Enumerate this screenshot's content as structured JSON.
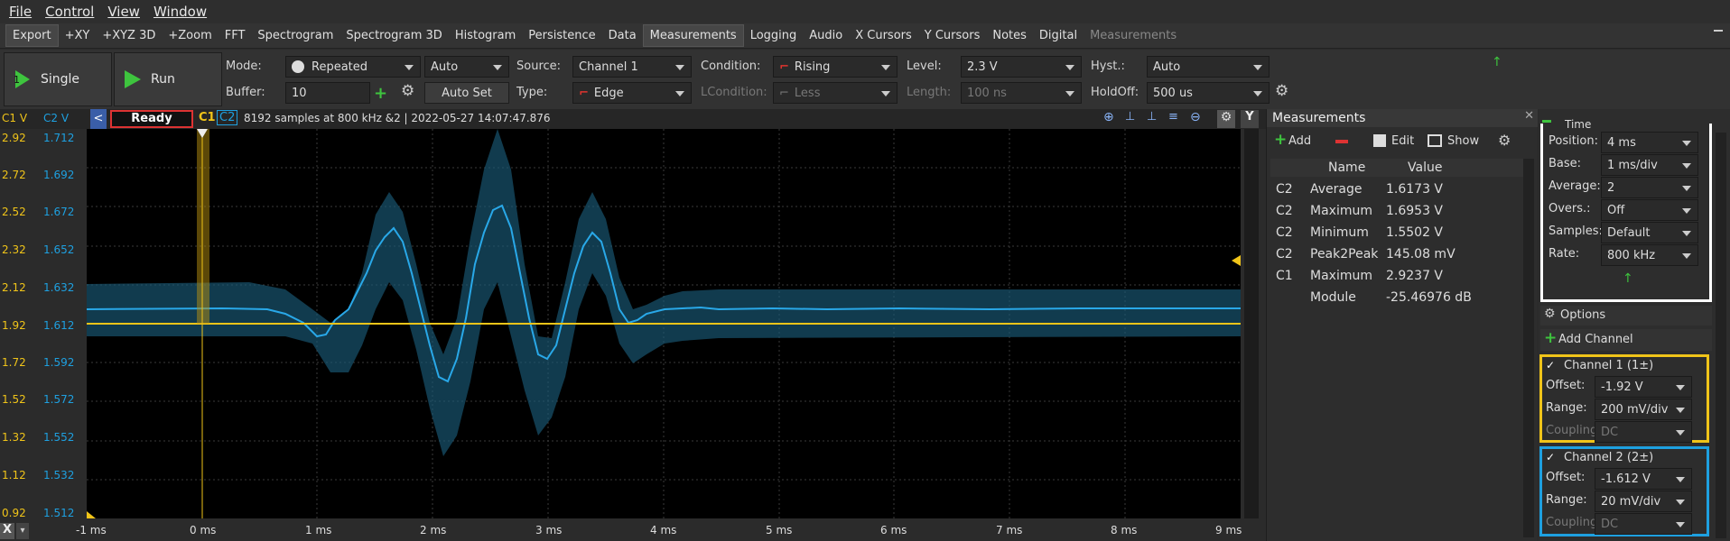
{
  "menu": [
    "File",
    "Control",
    "View",
    "Window"
  ],
  "tabs": {
    "export": "Export",
    "items": [
      "+XY",
      "+XYZ 3D",
      "+Zoom",
      "FFT",
      "Spectrogram",
      "Spectrogram 3D",
      "Histogram",
      "Persistence",
      "Data",
      "Measurements",
      "Logging",
      "Audio",
      "X Cursors",
      "Y Cursors",
      "Notes",
      "Digital"
    ],
    "dim": "Measurements"
  },
  "acq": {
    "single": "Single",
    "run": "Run",
    "mode_label": "Mode:",
    "mode": "Repeated",
    "mode2": "Auto",
    "buffer_label": "Buffer:",
    "buffer": "10",
    "autoset": "Auto Set",
    "source_label": "Source:",
    "source": "Channel 1",
    "type_label": "Type:",
    "type": "Edge",
    "condition_label": "Condition:",
    "condition": "Rising",
    "lcondition_label": "LCondition:",
    "lcondition": "Less",
    "level_label": "Level:",
    "level": "2.3 V",
    "length_label": "Length:",
    "length": "100 ns",
    "hyst_label": "Hyst.:",
    "hyst": "Auto",
    "holdoff_label": "HoldOff:",
    "holdoff": "500 us"
  },
  "scope": {
    "c1_header": "C1 V",
    "c2_header": "C2 V",
    "status": "Ready",
    "c1_tag": "C1",
    "c2_tag": "C2",
    "info": "8192 samples at 800 kHz &2 | 2022-05-27 14:07:47.876",
    "yaxis_btn": "Y",
    "x_btn": "X"
  },
  "c1_ticks": [
    "2.92",
    "2.72",
    "2.52",
    "2.32",
    "2.12",
    "1.92",
    "1.72",
    "1.52",
    "1.32",
    "1.12",
    "0.92"
  ],
  "c2_ticks": [
    "1.712",
    "1.692",
    "1.672",
    "1.652",
    "1.632",
    "1.612",
    "1.592",
    "1.572",
    "1.552",
    "1.532",
    "1.512"
  ],
  "x_ticks": [
    "-1 ms",
    "0 ms",
    "1 ms",
    "2 ms",
    "3 ms",
    "4 ms",
    "5 ms",
    "6 ms",
    "7 ms",
    "8 ms",
    "9 ms"
  ],
  "measurements": {
    "title": "Measurements",
    "add": "Add",
    "edit": "Edit",
    "show": "Show",
    "col_name": "Name",
    "col_value": "Value",
    "rows": [
      {
        "ch": "C2",
        "name": "Average",
        "value": "1.6173 V"
      },
      {
        "ch": "C2",
        "name": "Maximum",
        "value": "1.6953 V"
      },
      {
        "ch": "C2",
        "name": "Minimum",
        "value": "1.5502 V"
      },
      {
        "ch": "C2",
        "name": "Peak2Peak",
        "value": "145.08 mV"
      },
      {
        "ch": "C1",
        "name": "Maximum",
        "value": "2.9237 V"
      },
      {
        "ch": "",
        "name": "Module",
        "value": "-25.46976 dB"
      }
    ]
  },
  "time": {
    "title": "Time",
    "position_label": "Position:",
    "position": "4 ms",
    "base_label": "Base:",
    "base": "1 ms/div",
    "average_label": "Average:",
    "average": "2",
    "overs_label": "Overs.:",
    "overs": "Off",
    "samples_label": "Samples:",
    "samples": "Default",
    "rate_label": "Rate:",
    "rate": "800 kHz"
  },
  "options": {
    "label": "Options",
    "add_channel": "Add Channel"
  },
  "ch1": {
    "title": "Channel 1 (1±)",
    "offset_label": "Offset:",
    "offset": "-1.92 V",
    "range_label": "Range:",
    "range": "200 mV/div",
    "coupling_label": "Coupling:",
    "coupling": "DC",
    "color": "#f0c419"
  },
  "ch2": {
    "title": "Channel 2 (2±)",
    "offset_label": "Offset:",
    "offset": "-1.612 V",
    "range_label": "Range:",
    "range": "20 mV/div",
    "coupling_label": "Coupling:",
    "coupling": "DC",
    "color": "#1ea0e0"
  },
  "colors": {
    "c1": "#f0c419",
    "c2": "#1ea0e0",
    "green": "#3ec43e"
  }
}
